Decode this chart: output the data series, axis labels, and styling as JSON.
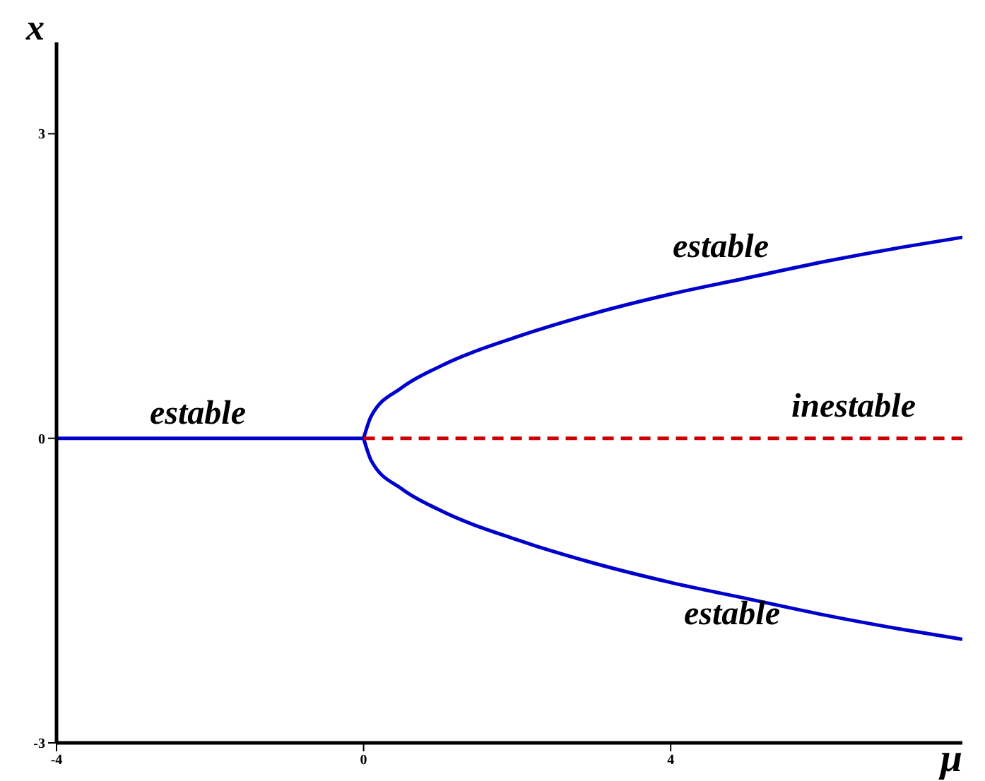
{
  "chart_data": {
    "type": "line",
    "xlabel": "μ",
    "ylabel": "x",
    "xlim": [
      -4,
      7.8
    ],
    "ylim": [
      -3,
      3.9
    ],
    "xticks": [
      -4,
      0,
      4
    ],
    "yticks": [
      -3,
      0,
      3
    ],
    "grid": false,
    "legend": false,
    "marker": "none",
    "series": [
      {
        "color": "#0000cc",
        "line_style": "solid",
        "x": [
          -4,
          0
        ],
        "values": [
          0,
          0
        ]
      },
      {
        "color": "#0000cc",
        "line_style": "solid",
        "x": [
          0,
          0.1,
          0.5,
          1,
          2,
          3,
          4,
          5,
          6,
          7,
          7.8
        ],
        "values": [
          0,
          0.22,
          0.5,
          0.71,
          1.0,
          1.23,
          1.42,
          1.58,
          1.74,
          1.88,
          1.98
        ]
      },
      {
        "color": "#0000cc",
        "line_style": "solid",
        "x": [
          0,
          0.1,
          0.5,
          1,
          2,
          3,
          4,
          5,
          6,
          7,
          7.8
        ],
        "values": [
          0,
          -0.22,
          -0.5,
          -0.71,
          -1.0,
          -1.23,
          -1.42,
          -1.58,
          -1.74,
          -1.88,
          -1.98
        ]
      },
      {
        "color": "#cc0000",
        "line_style": "dashed",
        "x": [
          0,
          7.8
        ],
        "values": [
          0,
          0
        ]
      }
    ],
    "annotations": [
      "estable",
      "estable",
      "inestable",
      "estable"
    ]
  }
}
